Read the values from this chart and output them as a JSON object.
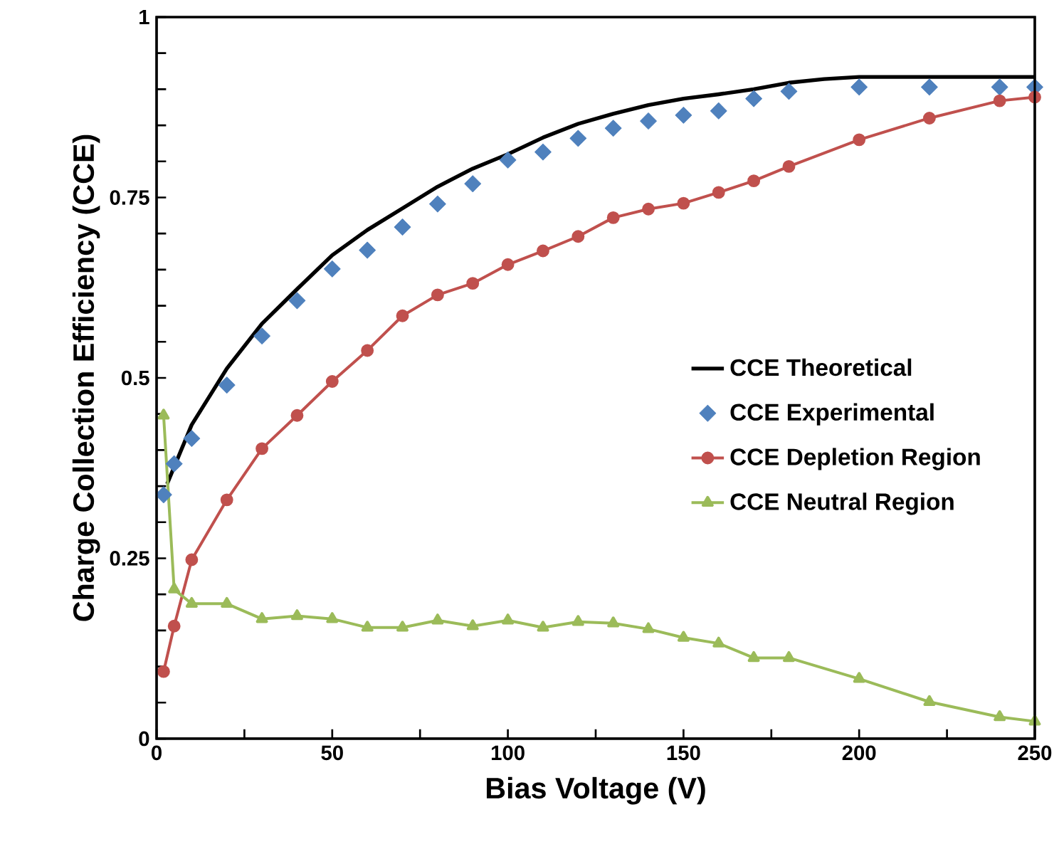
{
  "chart_data": {
    "type": "line",
    "xlabel": "Bias Voltage (V)",
    "ylabel": "Charge Collection Efficiency (CCE)",
    "xlim": [
      0,
      250
    ],
    "ylim": [
      0,
      1
    ],
    "xticks": [
      0,
      {
        "value": 25,
        "label": null
      },
      50,
      {
        "value": 75,
        "label": null
      },
      100,
      {
        "value": 125,
        "label": null
      },
      150,
      {
        "value": 175,
        "label": null
      },
      200,
      {
        "value": 225,
        "label": null
      },
      250
    ],
    "yticks": [
      0,
      {
        "value": 0.05,
        "label": null
      },
      {
        "value": 0.1,
        "label": null
      },
      {
        "value": 0.15,
        "label": null
      },
      {
        "value": 0.2,
        "label": null
      },
      0.25,
      {
        "value": 0.3,
        "label": null
      },
      {
        "value": 0.35,
        "label": null
      },
      {
        "value": 0.4,
        "label": null
      },
      {
        "value": 0.45,
        "label": null
      },
      0.5,
      {
        "value": 0.55,
        "label": null
      },
      {
        "value": 0.6,
        "label": null
      },
      {
        "value": 0.65,
        "label": null
      },
      {
        "value": 0.7,
        "label": null
      },
      0.75,
      {
        "value": 0.8,
        "label": null
      },
      {
        "value": 0.85,
        "label": null
      },
      {
        "value": 0.9,
        "label": null
      },
      {
        "value": 0.95,
        "label": null
      },
      1
    ],
    "grid": false,
    "legend": "right",
    "series": [
      {
        "name": "CCE Theoretical",
        "color": "#000000",
        "marker": "none",
        "x": [
          3,
          10,
          20,
          30,
          40,
          50,
          60,
          70,
          80,
          90,
          100,
          110,
          120,
          130,
          140,
          150,
          160,
          170,
          180,
          190,
          200,
          220,
          250
        ],
        "values": [
          0.353,
          0.435,
          0.513,
          0.575,
          0.623,
          0.67,
          0.705,
          0.735,
          0.765,
          0.79,
          0.81,
          0.833,
          0.852,
          0.866,
          0.878,
          0.887,
          0.893,
          0.9,
          0.909,
          0.914,
          0.917,
          0.917,
          0.917
        ]
      },
      {
        "name": "CCE Experimental",
        "type": "scatter",
        "color": "#4f81bd",
        "marker": "diamond",
        "x": [
          2,
          5,
          10,
          20,
          30,
          40,
          50,
          60,
          70,
          80,
          90,
          100,
          110,
          120,
          130,
          140,
          150,
          160,
          170,
          180,
          200,
          220,
          240,
          250
        ],
        "values": [
          0.338,
          0.381,
          0.416,
          0.49,
          0.558,
          0.607,
          0.651,
          0.677,
          0.709,
          0.741,
          0.769,
          0.802,
          0.813,
          0.832,
          0.846,
          0.856,
          0.864,
          0.87,
          0.887,
          0.897,
          0.903,
          0.903,
          0.903,
          0.903
        ]
      },
      {
        "name": "CCE Depletion Region",
        "color": "#c0504d",
        "marker": "circle",
        "x": [
          2,
          5,
          10,
          20,
          30,
          40,
          50,
          60,
          70,
          80,
          90,
          100,
          110,
          120,
          130,
          140,
          150,
          160,
          170,
          180,
          200,
          220,
          240,
          250
        ],
        "values": [
          0.093,
          0.156,
          0.248,
          0.331,
          0.402,
          0.448,
          0.495,
          0.538,
          0.586,
          0.615,
          0.631,
          0.657,
          0.676,
          0.696,
          0.722,
          0.734,
          0.742,
          0.757,
          0.773,
          0.793,
          0.83,
          0.86,
          0.884,
          0.889
        ]
      },
      {
        "name": "CCE Neutral Region",
        "color": "#9bbb59",
        "marker": "triangle",
        "x": [
          2,
          5,
          10,
          20,
          30,
          40,
          50,
          60,
          70,
          80,
          90,
          100,
          110,
          120,
          130,
          140,
          150,
          160,
          170,
          180,
          200,
          220,
          240,
          250
        ],
        "values": [
          0.448,
          0.207,
          0.187,
          0.187,
          0.166,
          0.17,
          0.166,
          0.154,
          0.154,
          0.164,
          0.156,
          0.164,
          0.154,
          0.162,
          0.16,
          0.152,
          0.14,
          0.132,
          0.112,
          0.112,
          0.083,
          0.051,
          0.03,
          0.024
        ]
      }
    ]
  }
}
